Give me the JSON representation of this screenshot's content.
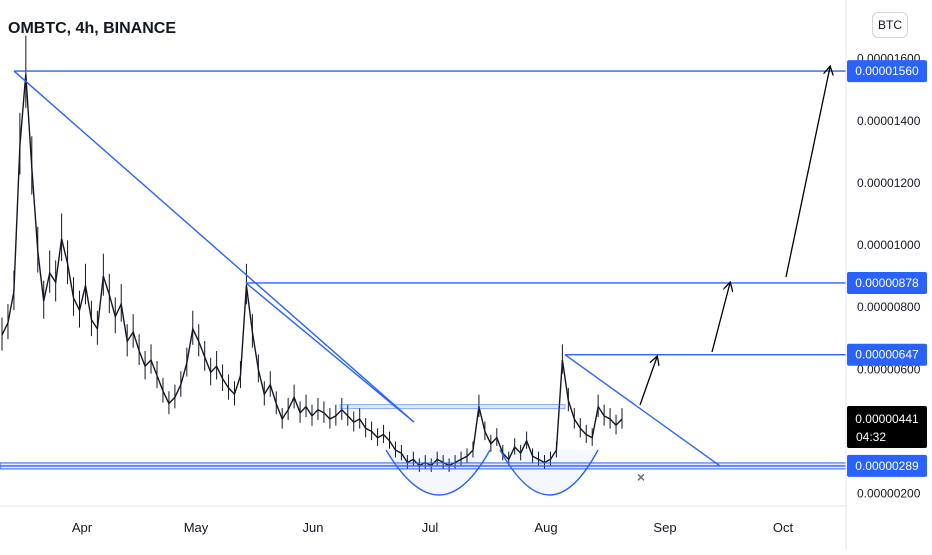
{
  "header": {
    "title": "OMBTC, 4h, BINANCE",
    "currency": "BTC"
  },
  "colors": {
    "line": "#2962ff",
    "candle": "#131722",
    "axis_text": "#131722",
    "label_bg": "#2962ff",
    "last_price_bg": "#000000",
    "marker": "#6b6f7a"
  },
  "chart_data": {
    "type": "line",
    "symbol": "OMBTC",
    "timeframe": "4h",
    "exchange": "BINANCE",
    "x_ticks": [
      "Apr",
      "May",
      "Jun",
      "Jul",
      "Aug",
      "Sep",
      "Oct"
    ],
    "y_ticks": [
      "0.00001600",
      "0.00001400",
      "0.00001200",
      "0.00001000",
      "0.00000800",
      "0.00000600",
      "0.00000200"
    ],
    "ylim": [
      1.6e-06,
      1.66e-05
    ],
    "price_levels": [
      {
        "label": "0.00001560",
        "value": 1.56e-05
      },
      {
        "label": "0.00000878",
        "value": 8.78e-06
      },
      {
        "label": "0.00000647",
        "value": 6.47e-06
      },
      {
        "label": "0.00000289",
        "value": 2.89e-06
      }
    ],
    "last_price": {
      "label": "0.00000441",
      "countdown": "04:32"
    },
    "price_series": [
      7.1e-06,
      7.5e-06,
      8.5e-06,
      1.32e-05,
      1.55e-05,
      1.25e-05,
      9.8e-06,
      8.2e-06,
      9.1e-06,
      8.8e-06,
      1.02e-05,
      9.4e-06,
      8.3e-06,
      7.9e-06,
      8.7e-06,
      7.6e-06,
      7.3e-06,
      9e-06,
      8.4e-06,
      7.7e-06,
      8.1e-06,
      6.9e-06,
      7.2e-06,
      6.6e-06,
      6.1e-06,
      6.3e-06,
      5.8e-06,
      5.3e-06,
      4.9e-06,
      5.1e-06,
      5.5e-06,
      6.2e-06,
      7.3e-06,
      6.9e-06,
      6.4e-06,
      5.9e-06,
      6.1e-06,
      5.7e-06,
      5.4e-06,
      5.2e-06,
      5.8e-06,
      8.7e-06,
      7.2e-06,
      6e-06,
      5.2e-06,
      5.5e-06,
      4.9e-06,
      4.4e-06,
      4.7e-06,
      5.1e-06,
      4.6e-06,
      4.8e-06,
      4.5e-06,
      4.7e-06,
      4.6e-06,
      4.4e-06,
      4.5e-06,
      4.7e-06,
      4.5e-06,
      4.3e-06,
      4.4e-06,
      4.1e-06,
      4e-06,
      3.8e-06,
      3.9e-06,
      3.7e-06,
      3.4e-06,
      3.3e-06,
      3e-06,
      3.1e-06,
      2.9e-06,
      3e-06,
      2.9e-06,
      3.1e-06,
      3e-06,
      2.9e-06,
      3e-06,
      3.1e-06,
      3.2e-06,
      3.4e-06,
      4.8e-06,
      4e-06,
      3.6e-06,
      3.8e-06,
      3.3e-06,
      3.1e-06,
      3.5e-06,
      3.3e-06,
      3.7e-06,
      3.2e-06,
      3.1e-06,
      3e-06,
      3.1e-06,
      3.4e-06,
      6.3e-06,
      5e-06,
      4.4e-06,
      4.1e-06,
      3.9e-06,
      3.8e-06,
      4.8e-06,
      4.5e-06,
      4.4e-06,
      4.2e-06,
      4.4e-06
    ],
    "trendlines": [
      {
        "from": [
          0.003,
          1.56e-05
        ],
        "to": [
          0.44,
          4.3e-06
        ]
      },
      {
        "from": [
          0.264,
          8.78e-06
        ],
        "to": [
          0.44,
          4.3e-06
        ]
      },
      {
        "from": [
          0.606,
          6.47e-06
        ],
        "to": [
          0.774,
          2.89e-06
        ]
      }
    ]
  }
}
